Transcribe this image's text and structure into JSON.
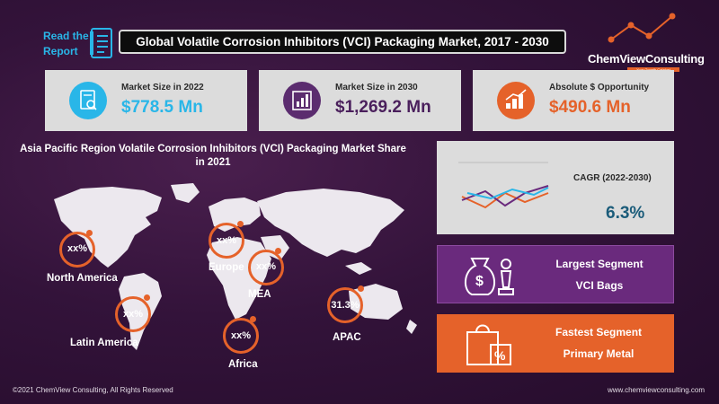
{
  "header": {
    "read_report_line1": "Read the",
    "read_report_line2": "Report",
    "title": "Global Volatile Corrosion Inhibitors (VCI) Packaging Market, 2017 - 2030"
  },
  "logo": {
    "name": "ChemViewConsulting",
    "tagline": "Your Growth Catalyst"
  },
  "stats": [
    {
      "label": "Market Size in 2022",
      "value": "$778.5 Mn",
      "color": "#29b6e8",
      "icon": "document-chart-icon"
    },
    {
      "label": "Market Size in 2030",
      "value": "$1,269.2 Mn",
      "color": "#5b2c6f",
      "icon": "bar-chart-icon"
    },
    {
      "label": "Absolute $ Opportunity",
      "value": "$490.6 Mn",
      "color": "#e5622a",
      "icon": "money-growth-icon"
    }
  ],
  "region_section": {
    "title": "Asia Pacific Region Volatile Corrosion Inhibitors (VCI) Packaging Market Share in 2021",
    "regions": [
      {
        "name": "North America",
        "value": "xx%"
      },
      {
        "name": "Europe",
        "value": "xx%"
      },
      {
        "name": "MEA",
        "value": "xx%"
      },
      {
        "name": "Latin America",
        "value": "xx%"
      },
      {
        "name": "Africa",
        "value": "xx%"
      },
      {
        "name": "APAC",
        "value": "31.3%"
      }
    ]
  },
  "cagr": {
    "label": "CAGR (2022-2030)",
    "value": "6.3%"
  },
  "largest_segment": {
    "title": "Largest Segment",
    "value": "VCI Bags",
    "icon": "money-bag-chess-icon"
  },
  "fastest_segment": {
    "title": "Fastest Segment",
    "value": "Primary Metal",
    "icon": "shopping-bag-percent-icon"
  },
  "footer": {
    "copyright": "©2021 ChemView Consulting, All Rights Reserved",
    "website": "www.chemviewconsulting.com"
  },
  "colors": {
    "background": "#33133a",
    "accent_orange": "#e5622a",
    "accent_blue": "#29b6e8",
    "accent_purple": "#6a2a7d"
  }
}
